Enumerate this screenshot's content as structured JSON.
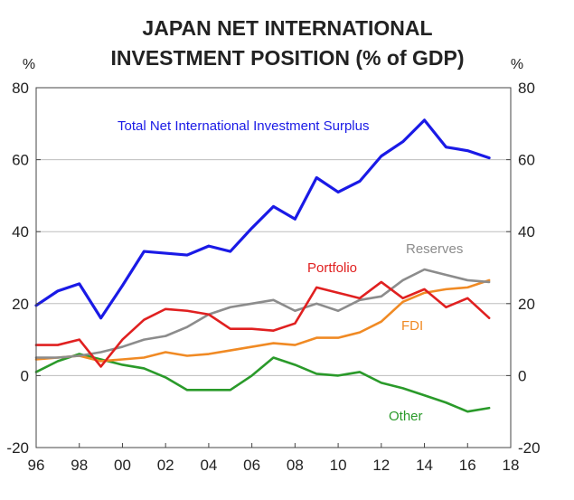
{
  "chart_data": {
    "type": "line",
    "title_lines": [
      "JAPAN NET INTERNATIONAL",
      "INVESTMENT POSITION (% of GDP)"
    ],
    "y_unit_left": "%",
    "y_unit_right": "%",
    "x": [
      1996,
      1997,
      1998,
      1999,
      2000,
      2001,
      2002,
      2003,
      2004,
      2005,
      2006,
      2007,
      2008,
      2009,
      2010,
      2011,
      2012,
      2013,
      2014,
      2015,
      2016,
      2017
    ],
    "xlim": [
      1996,
      2018
    ],
    "ylim": [
      -20,
      80
    ],
    "x_ticks": [
      1996,
      1998,
      2000,
      2002,
      2004,
      2006,
      2008,
      2010,
      2012,
      2014,
      2016,
      2018
    ],
    "x_tick_labels": [
      "96",
      "98",
      "00",
      "02",
      "04",
      "06",
      "08",
      "10",
      "12",
      "14",
      "16",
      "18"
    ],
    "y_ticks": [
      -20,
      0,
      20,
      40,
      60,
      80
    ],
    "y_tick_labels": [
      "-20",
      "0",
      "20",
      "40",
      "60",
      "80"
    ],
    "gridlines": [
      0,
      20,
      40,
      60
    ],
    "series": [
      {
        "name": "Total Net International Investment Surplus",
        "color": "#1a1ae6",
        "values": [
          19.5,
          23.5,
          25.5,
          16,
          25,
          34.5,
          34,
          33.5,
          36,
          34.5,
          41,
          47,
          43.5,
          55,
          51,
          54,
          61,
          65,
          71,
          63.5,
          62.5,
          60.5
        ]
      },
      {
        "name": "Portfolio",
        "color": "#e02020",
        "values": [
          8.5,
          8.5,
          10,
          2.5,
          10,
          15.5,
          18.5,
          18,
          17,
          13,
          13,
          12.5,
          14.5,
          24.5,
          23,
          21.5,
          26,
          21.5,
          24,
          19,
          21.5,
          16
        ]
      },
      {
        "name": "Reserves",
        "color": "#8c8c8c",
        "values": [
          5,
          5,
          5.5,
          6.5,
          8,
          10,
          11,
          13.5,
          17,
          19,
          20,
          21,
          18,
          20,
          18,
          21,
          22,
          26.5,
          29.5,
          28,
          26.5,
          26
        ]
      },
      {
        "name": "FDI",
        "color": "#f08a24",
        "values": [
          4.5,
          5,
          5.5,
          4,
          4.5,
          5,
          6.5,
          5.5,
          6,
          7,
          8,
          9,
          8.5,
          10.5,
          10.5,
          12,
          15,
          20.5,
          23,
          24,
          24.5,
          26.5
        ]
      },
      {
        "name": "Other",
        "color": "#2a9a2a",
        "values": [
          1,
          4,
          6,
          4.5,
          3,
          2,
          -0.5,
          -4,
          -4,
          -4,
          0,
          5,
          3,
          0.5,
          0,
          1,
          -2,
          -3.5,
          -5.5,
          -7.5,
          -10,
          -9
        ]
      }
    ]
  }
}
